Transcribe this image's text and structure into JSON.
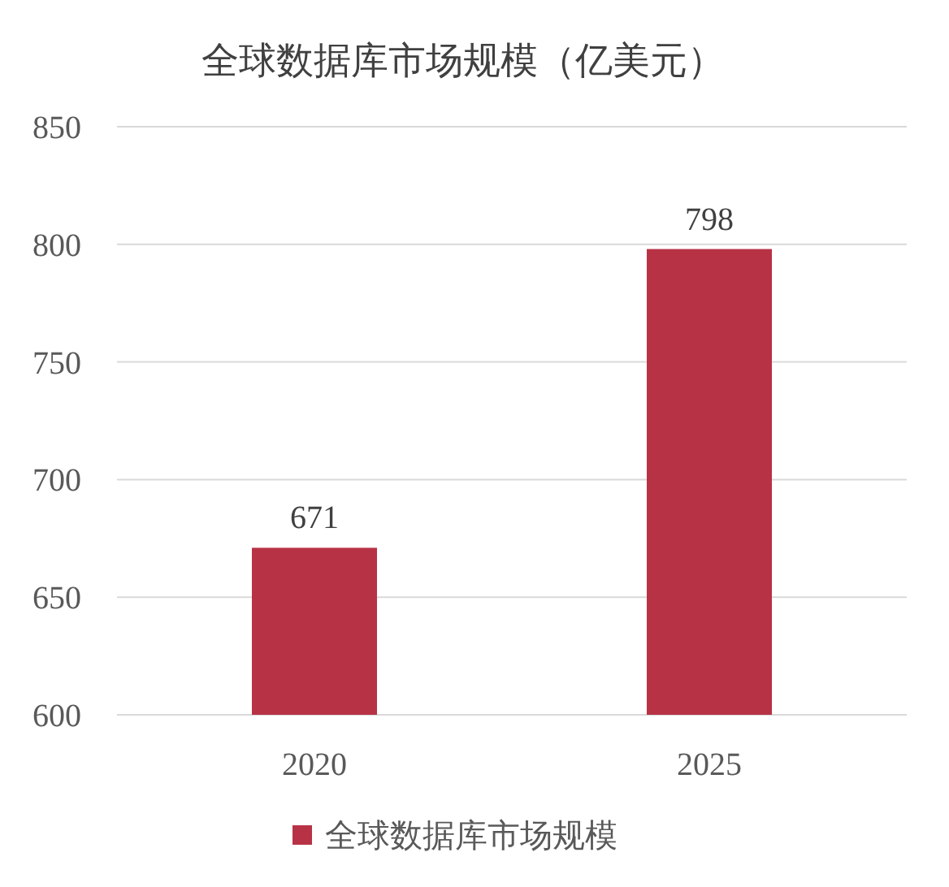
{
  "chart_data": {
    "type": "bar",
    "title": "全球数据库市场规模（亿美元）",
    "categories": [
      "2020",
      "2025"
    ],
    "series": [
      {
        "name": "全球数据库市场规模",
        "color": "#b83246",
        "values": [
          671,
          798
        ]
      }
    ],
    "ylim": [
      600,
      850
    ],
    "yticks": [
      600,
      650,
      700,
      750,
      800,
      850
    ],
    "grid": "y",
    "data_labels": true,
    "legend": "bottom"
  }
}
